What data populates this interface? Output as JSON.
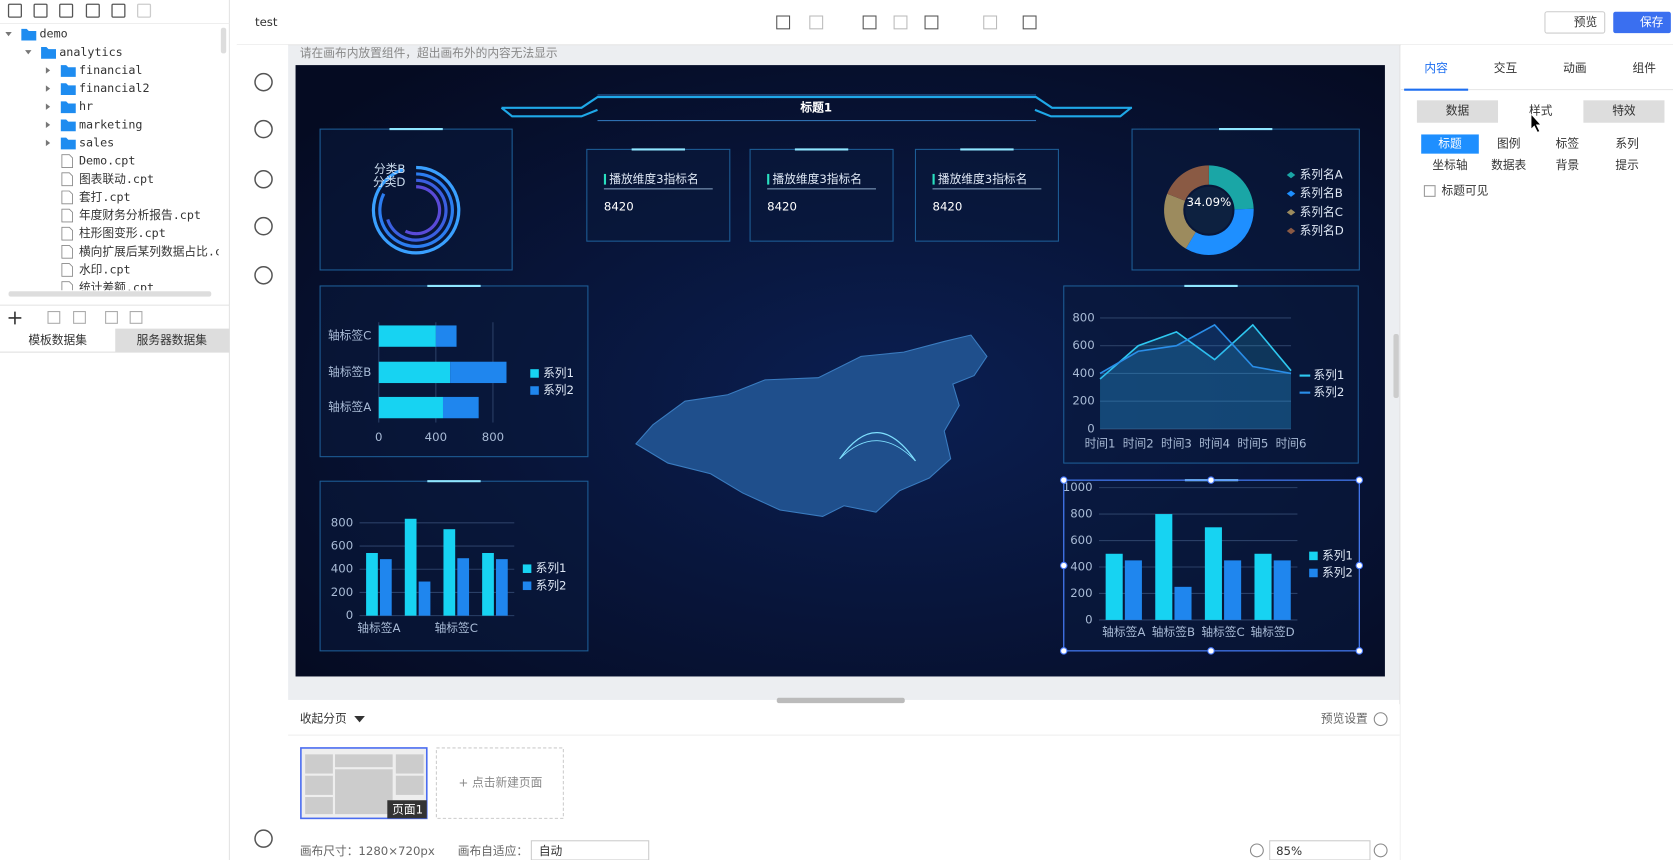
{
  "toolbar": {
    "doc_title": "test",
    "preview": "预览",
    "save": "保存"
  },
  "tree": {
    "items": [
      {
        "label": "demo",
        "level": 0,
        "folder": true,
        "expanded": true
      },
      {
        "label": "analytics",
        "level": 1,
        "folder": true,
        "expanded": true
      },
      {
        "label": "financial",
        "level": 2,
        "folder": true
      },
      {
        "label": "financial2",
        "level": 2,
        "folder": true
      },
      {
        "label": "hr",
        "level": 2,
        "folder": true
      },
      {
        "label": "marketing",
        "level": 2,
        "folder": true
      },
      {
        "label": "sales",
        "level": 2,
        "folder": true
      },
      {
        "label": "Demo.cpt",
        "level": 2
      },
      {
        "label": "图表联动.cpt",
        "level": 2
      },
      {
        "label": "套打.cpt",
        "level": 2
      },
      {
        "label": "年度财务分析报告.cpt",
        "level": 2
      },
      {
        "label": "柱形图变形.cpt",
        "level": 2
      },
      {
        "label": "横向扩展后某列数据占比.cpt",
        "level": 2
      },
      {
        "label": "水印.cpt",
        "level": 2
      },
      {
        "label": "统计差额.cpt",
        "level": 2
      }
    ]
  },
  "left_tabs": [
    "模板数据集",
    "服务器数据集"
  ],
  "canvas_hint": "请在画布内放置组件，超出画布外的内容无法显示",
  "dashboard": {
    "title": "标题1",
    "kpis": [
      {
        "label": "播放维度3指标名",
        "value": 8420
      },
      {
        "label": "播放维度3指标名",
        "value": 8420
      },
      {
        "label": "播放维度3指标名",
        "value": 8420
      }
    ],
    "ring": {
      "labels": [
        "分类B",
        "分类D"
      ]
    },
    "donut": {
      "type": "pie",
      "center_label": "34.09%",
      "categories": [
        "系列名A",
        "系列名B",
        "系列名C",
        "系列名D"
      ],
      "values": [
        24.5,
        34.09,
        22.4,
        19.01
      ],
      "colors": [
        "#1aa6a6",
        "#1e8fff",
        "#9c8b5e",
        "#8a5a44"
      ]
    },
    "hbar": {
      "type": "bar",
      "horizontal": true,
      "categories": [
        "轴标签C",
        "轴标签B",
        "轴标签A"
      ],
      "series": [
        {
          "name": "系列1",
          "color": "#17d3f2",
          "values": [
            400,
            500,
            450
          ]
        },
        {
          "name": "系列2",
          "color": "#1f86ee",
          "values": [
            145,
            395,
            250
          ]
        }
      ],
      "xlim": [
        0,
        800
      ],
      "xticks": [
        0,
        400,
        800
      ]
    },
    "vbar": {
      "type": "bar",
      "categories": [
        "轴标签A",
        null,
        "轴标签C",
        null
      ],
      "series": [
        {
          "name": "系列1",
          "color": "#17d3f2",
          "values": [
            540,
            835,
            745,
            540
          ]
        },
        {
          "name": "系列2",
          "color": "#1f86ee",
          "values": [
            487,
            294,
            495,
            487
          ]
        }
      ],
      "ylim": [
        0,
        800
      ],
      "yticks": [
        0,
        200,
        400,
        600,
        800
      ]
    },
    "line": {
      "type": "line",
      "categories": [
        "时间1",
        "时间2",
        "时间3",
        "时间4",
        "时间5",
        "时间6"
      ],
      "series": [
        {
          "name": "系列1",
          "color": "#2ec8f0",
          "values": [
            360,
            600,
            700,
            500,
            750,
            420
          ]
        },
        {
          "name": "系列2",
          "color": "#2a8ee8",
          "values": [
            400,
            560,
            600,
            750,
            450,
            400
          ]
        }
      ],
      "ylim": [
        0,
        800
      ],
      "yticks": [
        0,
        200,
        400,
        600,
        800
      ]
    },
    "bar": {
      "type": "bar",
      "categories": [
        "轴标签A",
        "轴标签B",
        "轴标签C",
        "轴标签D"
      ],
      "series": [
        {
          "name": "系列1",
          "color": "#17d3f2",
          "values": [
            500,
            800,
            700,
            500
          ]
        },
        {
          "name": "系列2",
          "color": "#1f86ee",
          "values": [
            450,
            250,
            450,
            450
          ]
        }
      ],
      "ylim": [
        0,
        1000
      ],
      "yticks": [
        0,
        200,
        400,
        600,
        800,
        1000
      ]
    }
  },
  "right_panel": {
    "tabs": [
      "内容",
      "交互",
      "动画",
      "组件"
    ],
    "subtabs": [
      "数据",
      "样式",
      "特效"
    ],
    "style_items": [
      "标题",
      "图例",
      "标签",
      "系列",
      "坐标轴",
      "数据表",
      "背景",
      "提示"
    ],
    "checkbox": "标题可见"
  },
  "pages": {
    "collapse": "收起分页",
    "preview_settings": "预览设置",
    "page1": "页面1",
    "new_page": "+ 点击新建页面"
  },
  "status": {
    "size_label": "画布尺寸：1280×720px",
    "fit_label": "画布自适应：",
    "fit_value": "自动",
    "zoom": "85%"
  }
}
